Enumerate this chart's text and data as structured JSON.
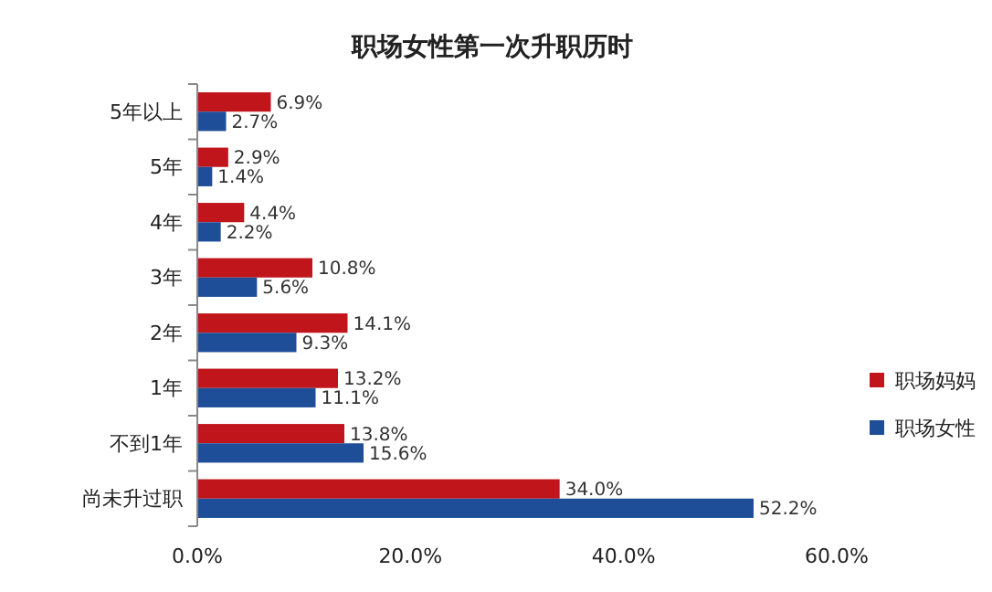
{
  "chart_data": {
    "type": "bar",
    "orientation": "horizontal",
    "title": "职场女性第一次升职历时",
    "categories": [
      "5年以上",
      "5年",
      "4年",
      "3年",
      "2年",
      "1年",
      "不到1年",
      "尚未升过职"
    ],
    "series": [
      {
        "name": "职场妈妈",
        "color": "#c0151a",
        "values": [
          6.9,
          2.9,
          4.4,
          10.8,
          14.1,
          13.2,
          13.8,
          34.0
        ],
        "value_labels": [
          "6.9%",
          "2.9%",
          "4.4%",
          "10.8%",
          "14.1%",
          "13.2%",
          "13.8%",
          "34.0%"
        ]
      },
      {
        "name": "职场女性",
        "color": "#1f4e99",
        "values": [
          2.7,
          1.4,
          2.2,
          5.6,
          9.3,
          11.1,
          15.6,
          52.2
        ],
        "value_labels": [
          "2.7%",
          "1.4%",
          "2.2%",
          "5.6%",
          "9.3%",
          "11.1%",
          "15.6%",
          "52.2%"
        ]
      }
    ],
    "xlim": [
      0,
      60
    ],
    "xticks": [
      {
        "value": 0,
        "label": "0.0%"
      },
      {
        "value": 20,
        "label": "20.0%"
      },
      {
        "value": 40,
        "label": "40.0%"
      },
      {
        "value": 60,
        "label": "60.0%"
      }
    ],
    "legend": "right",
    "grid": false
  }
}
